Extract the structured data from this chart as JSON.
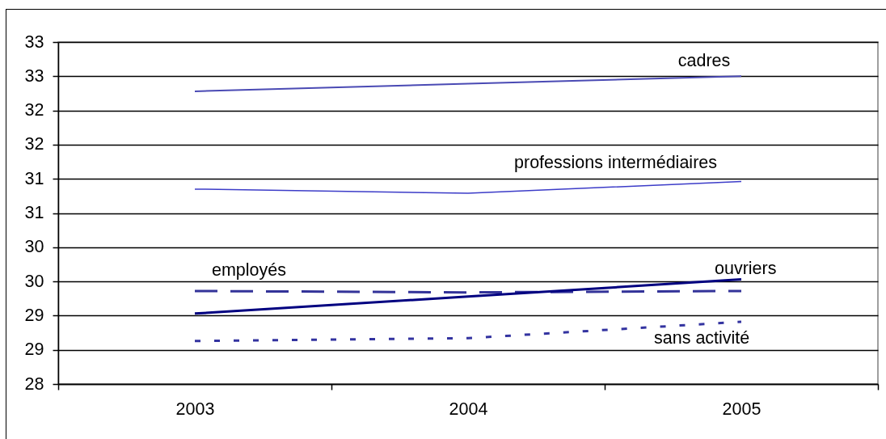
{
  "chart_data": {
    "type": "line",
    "categories": [
      "2003",
      "2004",
      "2005"
    ],
    "series": [
      {
        "name": "cadres",
        "color": "#4a4ab4",
        "line_style": "solid",
        "values": [
          32.28,
          32.39,
          32.5
        ]
      },
      {
        "name": "professions intermédiaires",
        "color": "#3c3cc8",
        "line_style": "solid",
        "values": [
          30.85,
          30.79,
          30.96
        ]
      },
      {
        "name": "employés",
        "color": "#333399",
        "line_style": "dashed",
        "values": [
          29.36,
          29.34,
          29.36
        ]
      },
      {
        "name": "ouvriers",
        "color": "#000080",
        "line_style": "solid",
        "values": [
          29.03,
          29.28,
          29.53
        ]
      },
      {
        "name": "sans activité",
        "color": "#3333a0",
        "line_style": "dotted",
        "values": [
          28.63,
          28.67,
          28.91
        ]
      }
    ],
    "ylim": [
      28,
      33
    ],
    "yticks": [
      28,
      {
        "value": 28.5,
        "label": "29"
      },
      29,
      {
        "value": 29.5,
        "label": "30"
      },
      30,
      {
        "value": 30.5,
        "label": "31"
      },
      31,
      {
        "value": 31.5,
        "label": "32"
      },
      32,
      {
        "value": 32.5,
        "label": "33"
      },
      33
    ],
    "grid": "y"
  }
}
